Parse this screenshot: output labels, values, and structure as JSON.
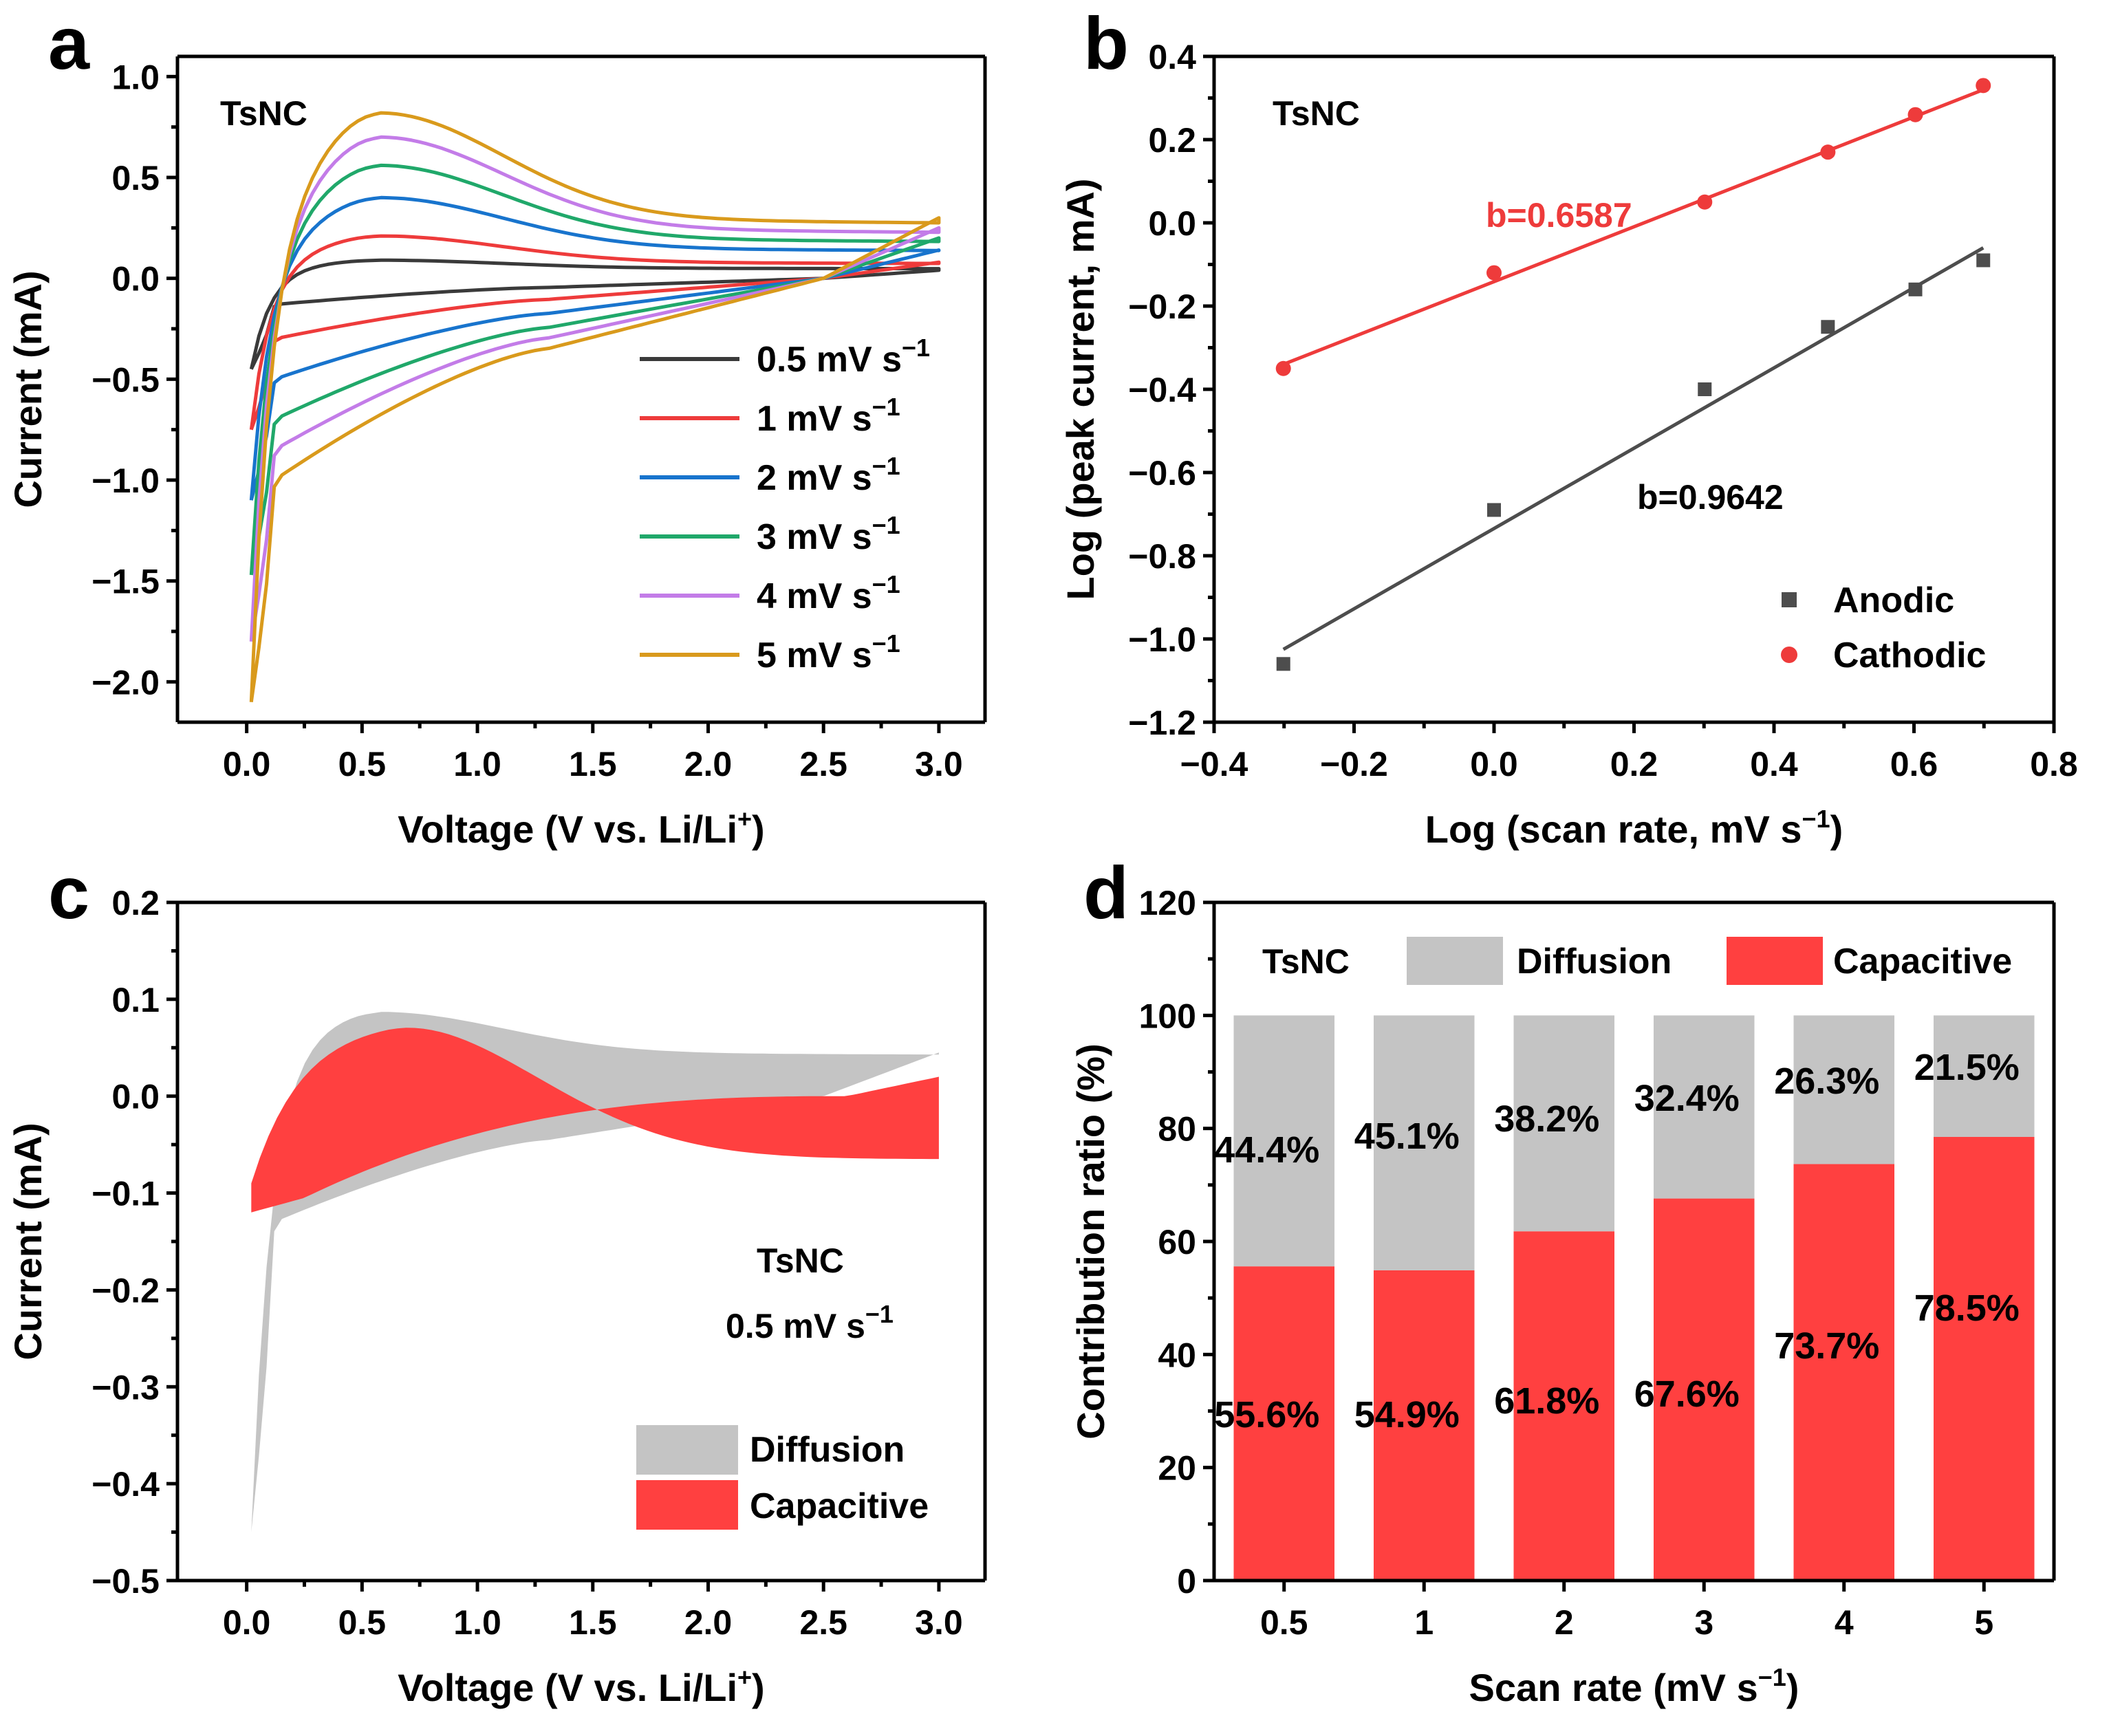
{
  "figure": "Four-panel electrochemical kinetics figure",
  "chart_data": [
    {
      "panel": "a",
      "type": "line",
      "annotation": "TsNC",
      "xlabel": "Voltage (V vs. Li/Li",
      "xlabel_sup": "+",
      "xlabel_end": ")",
      "ylabel": "Current (mA)",
      "xlim": [
        -0.3,
        3.2
      ],
      "ylim": [
        -2.2,
        1.1
      ],
      "xticks": [
        0.0,
        0.5,
        1.0,
        1.5,
        2.0,
        2.5,
        3.0
      ],
      "xticklabels": [
        "0.0",
        "0.5",
        "1.0",
        "1.5",
        "2.0",
        "2.5",
        "3.0"
      ],
      "yticks": [
        1.0,
        0.5,
        0.0,
        -0.5,
        -1.0,
        -1.5,
        -2.0
      ],
      "yticklabels": [
        "1.0",
        "0.5",
        "0.0",
        "−0.5",
        "−1.0",
        "−1.5",
        "−2.0"
      ],
      "series": [
        {
          "name": "0.5 mV s",
          "sup": "−1",
          "color": "#3a3a3a",
          "anodic_peak": 0.09,
          "cathodic_min": -0.45,
          "plateau": 0.05,
          "cathodic_mid": -0.13,
          "v_end": 0.04
        },
        {
          "name": "1 mV s",
          "sup": "−1",
          "color": "#ee3b3b",
          "anodic_peak": 0.21,
          "cathodic_min": -0.75,
          "plateau": 0.08,
          "cathodic_mid": -0.3,
          "v_end": 0.08
        },
        {
          "name": "2 mV s",
          "sup": "−1",
          "color": "#1874cd",
          "anodic_peak": 0.4,
          "cathodic_min": -1.1,
          "plateau": 0.15,
          "cathodic_mid": -0.5,
          "v_end": 0.14
        },
        {
          "name": "3 mV s",
          "sup": "−1",
          "color": "#20a86a",
          "anodic_peak": 0.56,
          "cathodic_min": -1.47,
          "plateau": 0.2,
          "cathodic_mid": -0.7,
          "v_end": 0.2
        },
        {
          "name": "4 mV s",
          "sup": "−1",
          "color": "#c37ce8",
          "anodic_peak": 0.7,
          "cathodic_min": -1.8,
          "plateau": 0.25,
          "cathodic_mid": -0.85,
          "v_end": 0.25
        },
        {
          "name": "5 mV s",
          "sup": "−1",
          "color": "#d99a1c",
          "anodic_peak": 0.82,
          "cathodic_min": -2.1,
          "plateau": 0.3,
          "cathodic_mid": -1.0,
          "v_end": 0.3
        }
      ]
    },
    {
      "panel": "b",
      "type": "scatter",
      "annotation": "TsNC",
      "xlabel": "Log (scan rate, mV s",
      "xlabel_sup": "−1",
      "xlabel_end": ")",
      "ylabel": "Log (peak current, mA)",
      "xlim": [
        -0.4,
        0.8
      ],
      "ylim": [
        -1.2,
        0.4
      ],
      "xticks": [
        -0.4,
        -0.2,
        0.0,
        0.2,
        0.4,
        0.6,
        0.8
      ],
      "xticklabels": [
        "−0.4",
        "−0.2",
        "0.0",
        "0.2",
        "0.4",
        "0.6",
        "0.8"
      ],
      "yticks": [
        0.4,
        0.2,
        0.0,
        -0.2,
        -0.4,
        -0.6,
        -0.8,
        -1.0,
        -1.2
      ],
      "yticklabels": [
        "0.4",
        "0.2",
        "0.0",
        "−0.2",
        "−0.4",
        "−0.6",
        "−0.8",
        "−1.0",
        "−1.2"
      ],
      "series": [
        {
          "name": "Anodic",
          "color": "#4d4d4d",
          "marker": "square",
          "x": [
            -0.301,
            0.0,
            0.301,
            0.477,
            0.602,
            0.699
          ],
          "y": [
            -1.06,
            -0.69,
            -0.4,
            -0.25,
            -0.16,
            -0.09
          ],
          "fit_label": "b=0.9642",
          "fit_x": [
            -0.301,
            0.699
          ],
          "fit_y": [
            -1.025,
            -0.06
          ]
        },
        {
          "name": "Cathodic",
          "color": "#ee3b3b",
          "marker": "circle",
          "x": [
            -0.301,
            0.0,
            0.301,
            0.477,
            0.602,
            0.699
          ],
          "y": [
            -0.35,
            -0.12,
            0.05,
            0.17,
            0.26,
            0.33
          ],
          "fit_label": "b=0.6587",
          "fit_x": [
            -0.301,
            0.699
          ],
          "fit_y": [
            -0.34,
            0.32
          ]
        }
      ]
    },
    {
      "panel": "c",
      "type": "area",
      "annotation": "TsNC",
      "annotation2": "0.5 mV s",
      "annotation2_sup": "−1",
      "xlabel": "Voltage (V vs. Li/Li",
      "xlabel_sup": "+",
      "xlabel_end": ")",
      "ylabel": "Current (mA)",
      "xlim": [
        -0.3,
        3.2
      ],
      "ylim": [
        -0.5,
        0.2
      ],
      "xticks": [
        0.0,
        0.5,
        1.0,
        1.5,
        2.0,
        2.5,
        3.0
      ],
      "xticklabels": [
        "0.0",
        "0.5",
        "1.0",
        "1.5",
        "2.0",
        "2.5",
        "3.0"
      ],
      "yticks": [
        0.2,
        0.1,
        0.0,
        -0.1,
        -0.2,
        -0.3,
        -0.4,
        -0.5
      ],
      "yticklabels": [
        "0.2",
        "0.1",
        "0.0",
        "−0.1",
        "−0.2",
        "−0.3",
        "−0.4",
        "−0.5"
      ],
      "series": [
        {
          "name": "Diffusion",
          "color": "#c4c4c4",
          "anodic_peak": 0.087,
          "cathodic_min": -0.45,
          "plateau": 0.045
        },
        {
          "name": "Capacitive",
          "color": "#ff4040",
          "anodic_peak": 0.08,
          "cathodic_min": -0.105,
          "plateau": 0.025
        }
      ]
    },
    {
      "panel": "d",
      "type": "bar",
      "stacked": true,
      "annotation": "TsNC",
      "xlabel": "Scan rate (mV s",
      "xlabel_sup": "−1",
      "xlabel_end": ")",
      "ylabel": "Contribution ratio (%)",
      "ylim": [
        0,
        120
      ],
      "yticks": [
        0,
        20,
        40,
        60,
        80,
        100,
        120
      ],
      "yticklabels": [
        "0",
        "20",
        "40",
        "60",
        "80",
        "100",
        "120"
      ],
      "categories": [
        "0.5",
        "1",
        "2",
        "3",
        "4",
        "5"
      ],
      "series": [
        {
          "name": "Capacitive",
          "color": "#ff4040",
          "values": [
            55.6,
            54.9,
            61.8,
            67.6,
            73.7,
            78.5
          ],
          "labels": [
            "55.6%",
            "54.9%",
            "61.8%",
            "67.6%",
            "73.7%",
            "78.5%"
          ]
        },
        {
          "name": "Diffusion",
          "color": "#c4c4c4",
          "values": [
            44.4,
            45.1,
            38.2,
            32.4,
            26.3,
            21.5
          ],
          "labels": [
            "44.4%",
            "45.1%",
            "38.2%",
            "32.4%",
            "26.3%",
            "21.5%"
          ]
        }
      ]
    }
  ]
}
